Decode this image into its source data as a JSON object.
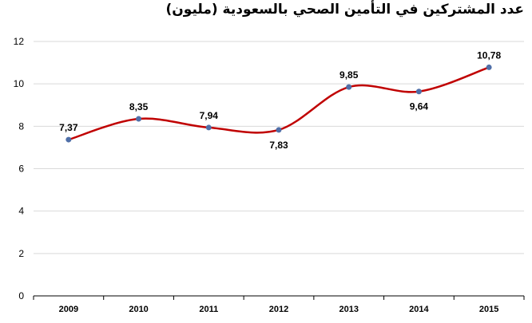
{
  "chart_data": {
    "type": "line",
    "title": "عدد المشتركين في التأمين الصحي بالسعودية (مليون)",
    "categories": [
      "2009",
      "2010",
      "2011",
      "2012",
      "2013",
      "2014",
      "2015"
    ],
    "values": [
      7.37,
      8.35,
      7.94,
      7.83,
      9.85,
      9.64,
      10.78
    ],
    "data_labels": [
      "7,37",
      "8,35",
      "7,94",
      "7,83",
      "9,85",
      "9,64",
      "10,78"
    ],
    "label_position": [
      "above",
      "above",
      "above",
      "below",
      "above",
      "below",
      "above"
    ],
    "yticks": [
      "0",
      "2",
      "4",
      "6",
      "8",
      "10",
      "12"
    ],
    "ylim": [
      0,
      12
    ],
    "grid": true,
    "legend": "none",
    "line_color": "#c00000",
    "marker_color": "#4f6fa8",
    "grid_color": "#d9d9d9",
    "axis_color": "#000000"
  }
}
